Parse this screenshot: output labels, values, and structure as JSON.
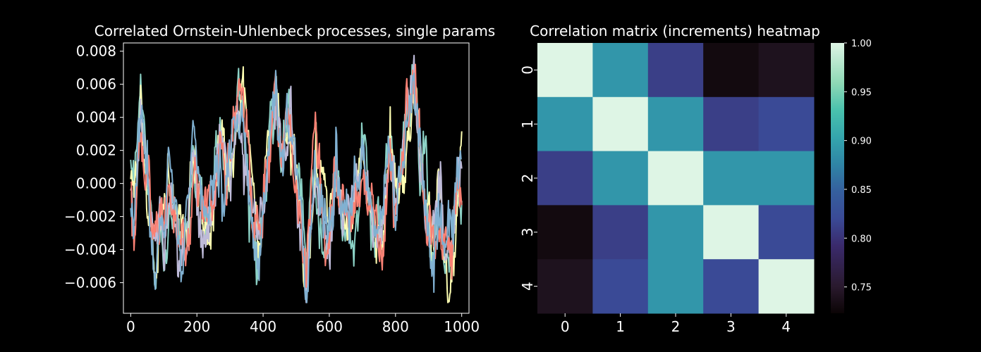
{
  "chart_data": [
    {
      "type": "line",
      "title": "Correlated Ornstein-Uhlenbeck processes, single params",
      "xlabel": "",
      "ylabel": "",
      "xlim": [
        -22,
        1022
      ],
      "ylim": [
        -0.00785,
        0.0085
      ],
      "x_ticks": [
        0,
        200,
        400,
        600,
        800,
        1000
      ],
      "x_tick_labels": [
        "0",
        "200",
        "400",
        "600",
        "800",
        "1000"
      ],
      "y_ticks": [
        -0.006,
        -0.004,
        -0.002,
        0.0,
        0.002,
        0.004,
        0.006,
        0.008
      ],
      "y_tick_labels": [
        "−0.006",
        "−0.004",
        "−0.002",
        "0.000",
        "0.002",
        "0.004",
        "0.006",
        "0.008"
      ],
      "grid": false,
      "legend": "none",
      "series_count": 5,
      "series_colors": [
        "#8dd3c7",
        "#feffb3",
        "#bfbbd9",
        "#fa8174",
        "#81b1d2"
      ],
      "keypoints": [
        [
          0,
          0.0001
        ],
        [
          10,
          -0.0015
        ],
        [
          20,
          0.002
        ],
        [
          30,
          0.0055
        ],
        [
          40,
          0.003
        ],
        [
          50,
          0.0
        ],
        [
          60,
          -0.002
        ],
        [
          75,
          -0.0045
        ],
        [
          90,
          -0.002
        ],
        [
          100,
          -0.0035
        ],
        [
          115,
          0.0005
        ],
        [
          130,
          -0.0015
        ],
        [
          150,
          -0.004
        ],
        [
          170,
          -0.003
        ],
        [
          190,
          0.0015
        ],
        [
          210,
          -0.0005
        ],
        [
          230,
          -0.0025
        ],
        [
          250,
          -0.001
        ],
        [
          270,
          0.0035
        ],
        [
          290,
          0.0005
        ],
        [
          310,
          0.003
        ],
        [
          325,
          0.0055
        ],
        [
          340,
          0.004
        ],
        [
          355,
          0.001
        ],
        [
          370,
          -0.002
        ],
        [
          385,
          -0.0045
        ],
        [
          400,
          -0.001
        ],
        [
          420,
          0.003
        ],
        [
          440,
          0.0055
        ],
        [
          455,
          0.001
        ],
        [
          470,
          0.0035
        ],
        [
          490,
          0.0025
        ],
        [
          510,
          -0.002
        ],
        [
          530,
          -0.0055
        ],
        [
          545,
          -0.001
        ],
        [
          560,
          0.002
        ],
        [
          580,
          -0.002
        ],
        [
          600,
          -0.003
        ],
        [
          620,
          0.001
        ],
        [
          640,
          -0.002
        ],
        [
          660,
          -0.003
        ],
        [
          680,
          -0.001
        ],
        [
          700,
          0.0015
        ],
        [
          720,
          -0.0015
        ],
        [
          740,
          -0.0045
        ],
        [
          760,
          -0.002
        ],
        [
          780,
          0.0025
        ],
        [
          800,
          -0.001
        ],
        [
          820,
          0.001
        ],
        [
          840,
          0.004
        ],
        [
          855,
          0.007
        ],
        [
          870,
          0.003
        ],
        [
          890,
          -0.0005
        ],
        [
          910,
          -0.0035
        ],
        [
          930,
          -0.001
        ],
        [
          950,
          -0.004
        ],
        [
          970,
          -0.005
        ],
        [
          985,
          -0.001
        ],
        [
          1000,
          0.0005
        ]
      ]
    },
    {
      "type": "heatmap",
      "title": "Correlation matrix (increments) heatmap",
      "x_tick_labels": [
        "0",
        "1",
        "2",
        "3",
        "4"
      ],
      "y_tick_labels": [
        "0",
        "1",
        "2",
        "3",
        "4"
      ],
      "values": [
        [
          1.0,
          0.89,
          0.81,
          0.73,
          0.74
        ],
        [
          0.89,
          1.0,
          0.89,
          0.81,
          0.82
        ],
        [
          0.81,
          0.89,
          1.0,
          0.89,
          0.89
        ],
        [
          0.73,
          0.81,
          0.89,
          1.0,
          0.82
        ],
        [
          0.74,
          0.82,
          0.89,
          0.82,
          1.0
        ]
      ],
      "colorbar": {
        "vmin": 0.723,
        "vmax": 1.0,
        "ticks": [
          0.75,
          0.8,
          0.85,
          0.9,
          0.95,
          1.0
        ],
        "tick_labels": [
          "0.75",
          "0.80",
          "0.85",
          "0.90",
          "0.95",
          "1.00"
        ],
        "colormap": "mako",
        "color_stops": [
          [
            0.0,
            "#0b0405"
          ],
          [
            0.1,
            "#2a1a2e"
          ],
          [
            0.25,
            "#3a2a6c"
          ],
          [
            0.35,
            "#3a4a96"
          ],
          [
            0.45,
            "#355f9e"
          ],
          [
            0.55,
            "#2f85a6"
          ],
          [
            0.65,
            "#34a5ad"
          ],
          [
            0.75,
            "#49c1ad"
          ],
          [
            0.85,
            "#8dd8b5"
          ],
          [
            1.0,
            "#def5e5"
          ]
        ]
      }
    }
  ]
}
